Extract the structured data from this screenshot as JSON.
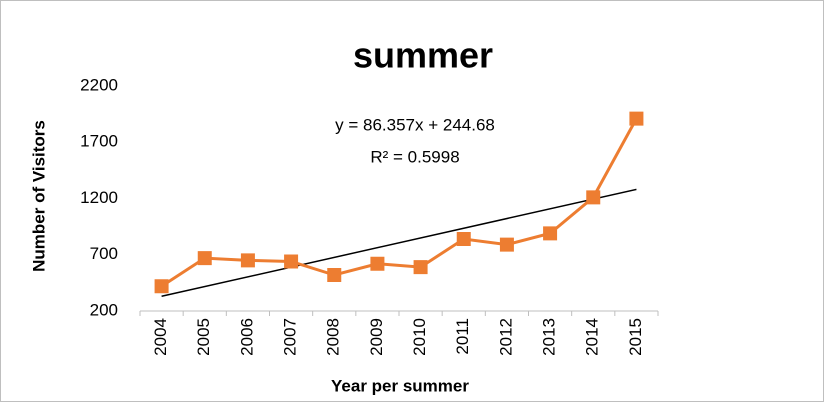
{
  "chart_data": {
    "type": "line",
    "title": "summer",
    "x_label": "Year per summer",
    "y_label": "Number of Visitors",
    "categories": [
      "2004",
      "2005",
      "2006",
      "2007",
      "2008",
      "2009",
      "2010",
      "2011",
      "2012",
      "2013",
      "2014",
      "2015"
    ],
    "series": [
      {
        "name": "Visitors",
        "color": "#ed7d31",
        "values": [
          420,
          670,
          650,
          640,
          520,
          620,
          590,
          840,
          790,
          890,
          1210,
          1910
        ]
      }
    ],
    "trendline": {
      "slope": 86.357,
      "intercept": 244.68,
      "color": "#000000"
    },
    "annotations": [
      "y = 86.357x + 244.68",
      "R² = 0.5998"
    ],
    "ylim": [
      200,
      2200
    ],
    "yticks": [
      200,
      700,
      1200,
      1700,
      2200
    ],
    "grid": false
  }
}
